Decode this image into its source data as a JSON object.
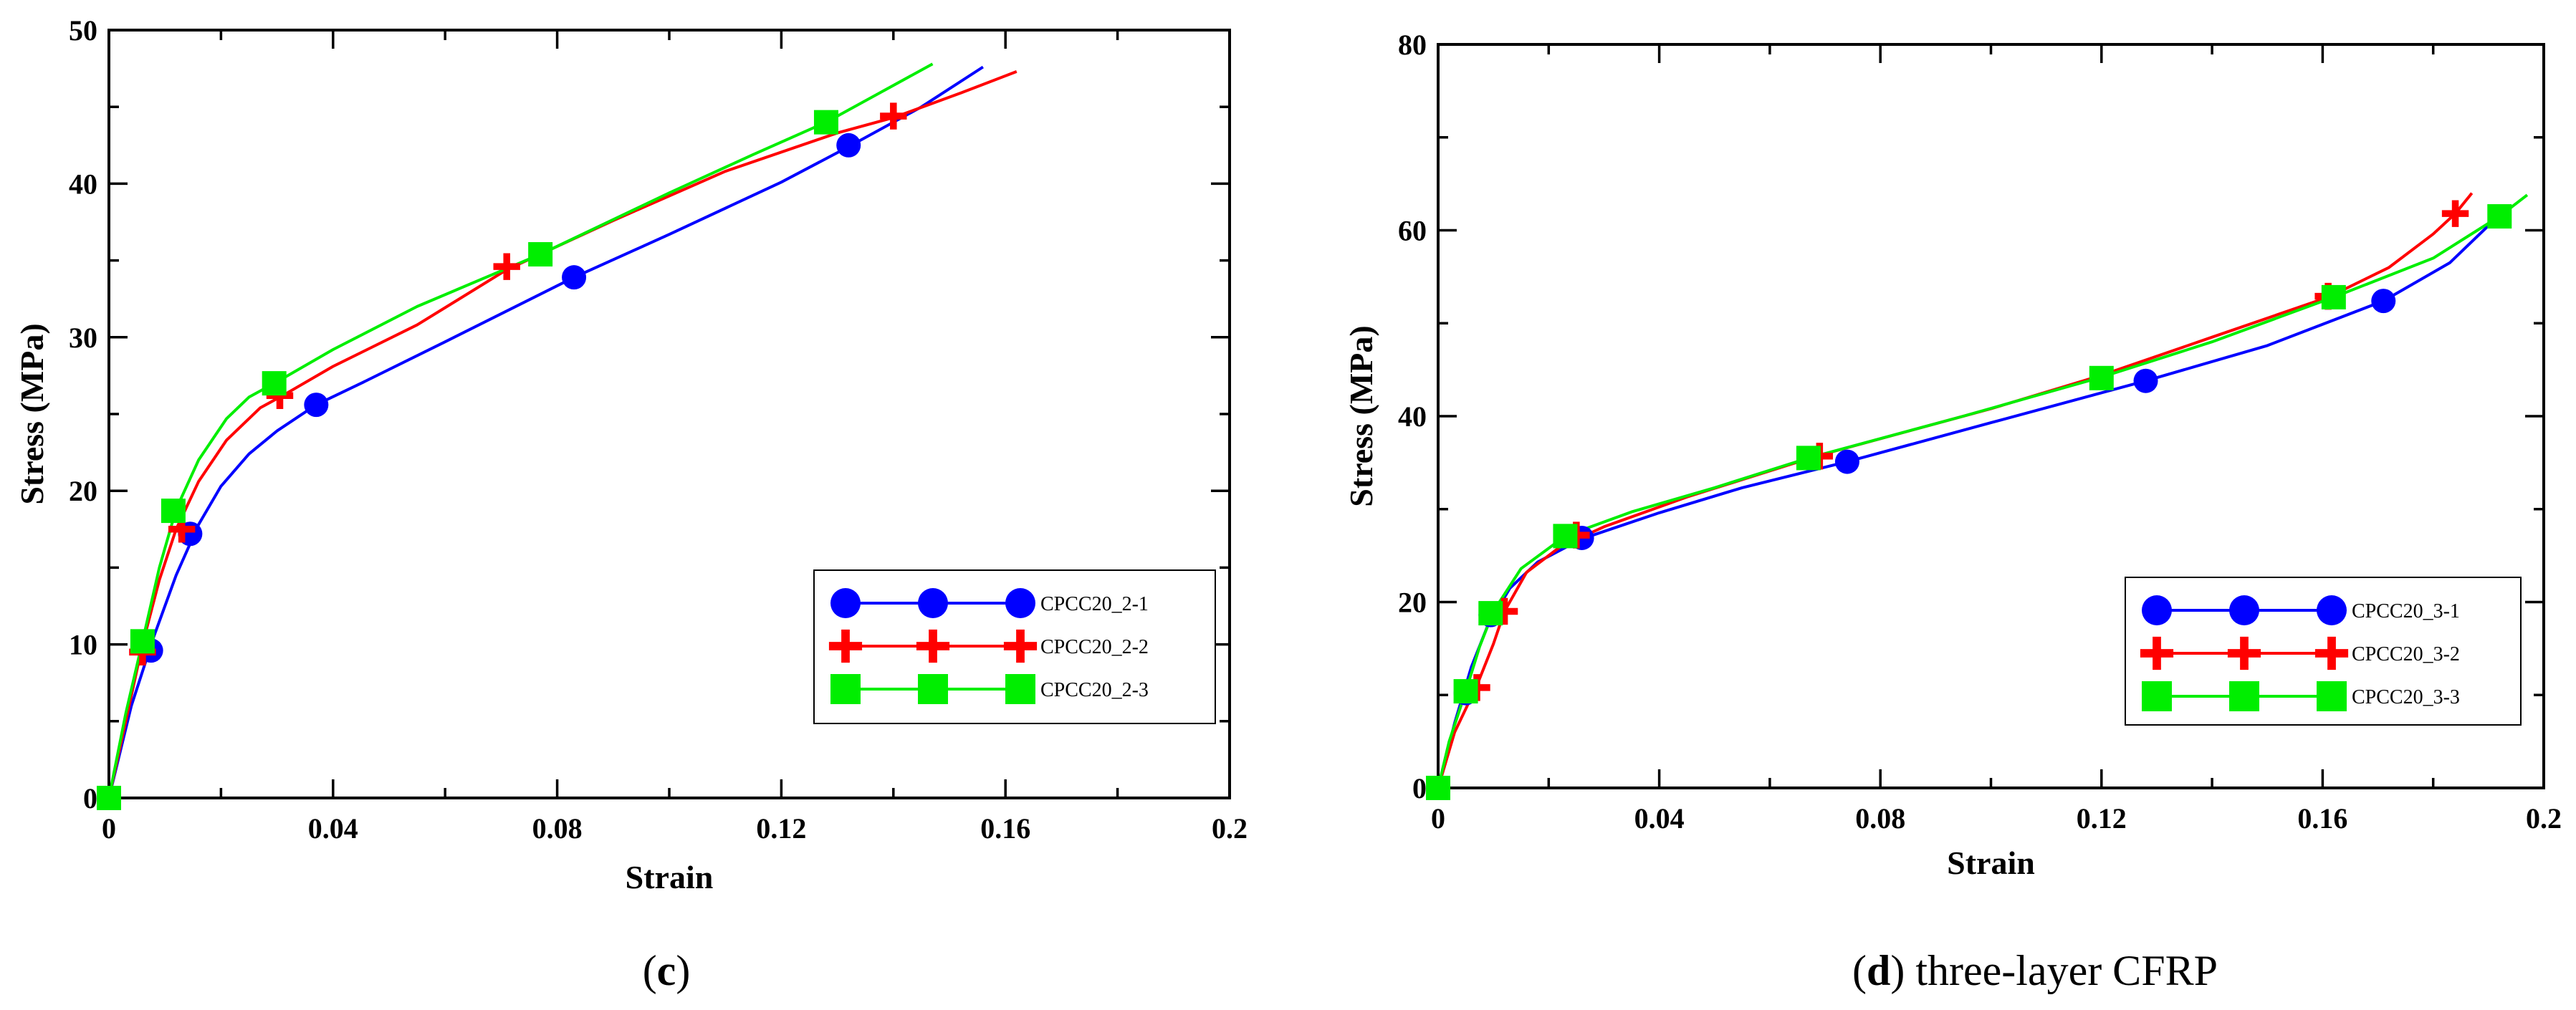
{
  "chart_data": [
    {
      "type": "line",
      "panel": "c",
      "title": "",
      "xlabel": "Strain",
      "ylabel": "Stress (MPa)",
      "xlim": [
        0,
        0.2
      ],
      "ylim": [
        0,
        50
      ],
      "xticks": [
        0,
        0.04,
        0.08,
        0.12,
        0.16,
        0.2
      ],
      "xtick_labels": [
        "0",
        "0.04",
        "0.08",
        "0.12",
        "0.16",
        "0.2"
      ],
      "yticks": [
        0,
        10,
        20,
        30,
        40,
        50
      ],
      "ytick_labels": [
        "0",
        "10",
        "20",
        "30",
        "40",
        "50"
      ],
      "legend_position": "bottom-right",
      "caption_letter": "c",
      "caption_open": "(",
      "caption_close": ")",
      "caption_rest": "",
      "series": [
        {
          "name": "CPCC20_2-1",
          "color": "#0000ff",
          "marker": "circle",
          "curve": [
            [
              0,
              0
            ],
            [
              0.004,
              6
            ],
            [
              0.008,
              10.5
            ],
            [
              0.012,
              14.5
            ],
            [
              0.016,
              17.8
            ],
            [
              0.02,
              20.3
            ],
            [
              0.025,
              22.4
            ],
            [
              0.03,
              23.9
            ],
            [
              0.037,
              25.6
            ],
            [
              0.045,
              27
            ],
            [
              0.06,
              29.7
            ],
            [
              0.083,
              33.9
            ],
            [
              0.1,
              36.7
            ],
            [
              0.12,
              40.1
            ],
            [
              0.132,
              42.4
            ],
            [
              0.145,
              45
            ],
            [
              0.156,
              47.6
            ]
          ],
          "markers": [
            [
              0,
              0
            ],
            [
              0.0075,
              9.6
            ],
            [
              0.0145,
              17.2
            ],
            [
              0.037,
              25.6
            ],
            [
              0.083,
              33.9
            ],
            [
              0.132,
              42.5
            ]
          ]
        },
        {
          "name": "CPCC20_2-2",
          "color": "#ff0000",
          "marker": "plus",
          "curve": [
            [
              0,
              0
            ],
            [
              0.003,
              5
            ],
            [
              0.006,
              10
            ],
            [
              0.009,
              14.2
            ],
            [
              0.012,
              17.5
            ],
            [
              0.016,
              20.6
            ],
            [
              0.021,
              23.3
            ],
            [
              0.027,
              25.4
            ],
            [
              0.031,
              26.2
            ],
            [
              0.04,
              28.1
            ],
            [
              0.055,
              30.8
            ],
            [
              0.071,
              34.4
            ],
            [
              0.09,
              37.6
            ],
            [
              0.11,
              40.8
            ],
            [
              0.13,
              43.3
            ],
            [
              0.14,
              44.3
            ],
            [
              0.152,
              45.9
            ],
            [
              0.162,
              47.3
            ]
          ],
          "markers": [
            [
              0.006,
              9.5
            ],
            [
              0.013,
              17.5
            ],
            [
              0.0305,
              26.2
            ],
            [
              0.071,
              34.6
            ],
            [
              0.14,
              44.4
            ]
          ]
        },
        {
          "name": "CPCC20_2-3",
          "color": "#00ee00",
          "marker": "square",
          "curve": [
            [
              0,
              0
            ],
            [
              0.003,
              5.5
            ],
            [
              0.006,
              10.2
            ],
            [
              0.009,
              15
            ],
            [
              0.012,
              18.8
            ],
            [
              0.016,
              22
            ],
            [
              0.021,
              24.7
            ],
            [
              0.025,
              26.1
            ],
            [
              0.03,
              27.1
            ],
            [
              0.04,
              29.2
            ],
            [
              0.055,
              32
            ],
            [
              0.077,
              35.4
            ],
            [
              0.1,
              39.4
            ],
            [
              0.115,
              41.9
            ],
            [
              0.128,
              44
            ],
            [
              0.138,
              46
            ],
            [
              0.147,
              47.8
            ]
          ],
          "markers": [
            [
              0,
              0
            ],
            [
              0.006,
              10.2
            ],
            [
              0.0115,
              18.7
            ],
            [
              0.0295,
              27
            ],
            [
              0.077,
              35.4
            ],
            [
              0.128,
              44
            ]
          ]
        }
      ]
    },
    {
      "type": "line",
      "panel": "d",
      "title": "",
      "xlabel": "Strain",
      "ylabel": "Stress (MPa)",
      "xlim": [
        0,
        0.2
      ],
      "ylim": [
        0,
        80
      ],
      "xticks": [
        0,
        0.04,
        0.08,
        0.12,
        0.16,
        0.2
      ],
      "xtick_labels": [
        "0",
        "0.04",
        "0.08",
        "0.12",
        "0.16",
        "0.2"
      ],
      "yticks": [
        0,
        20,
        40,
        60,
        80
      ],
      "ytick_labels": [
        "0",
        "20",
        "40",
        "60",
        "80"
      ],
      "legend_position": "bottom-right",
      "caption_letter": "d",
      "caption_open": "(",
      "caption_close": ")",
      "caption_rest": " three-layer CFRP",
      "series": [
        {
          "name": "CPCC20_3-1",
          "color": "#0000ff",
          "marker": "circle",
          "curve": [
            [
              0,
              0
            ],
            [
              0.003,
              7
            ],
            [
              0.006,
              13
            ],
            [
              0.009,
              17.5
            ],
            [
              0.013,
              21.5
            ],
            [
              0.018,
              24.3
            ],
            [
              0.026,
              26.8
            ],
            [
              0.04,
              29.6
            ],
            [
              0.055,
              32.3
            ],
            [
              0.074,
              35.1
            ],
            [
              0.1,
              39.3
            ],
            [
              0.128,
              43.8
            ],
            [
              0.15,
              47.6
            ],
            [
              0.171,
              52.4
            ],
            [
              0.183,
              56.5
            ],
            [
              0.19,
              60.5
            ]
          ],
          "markers": [
            [
              0,
              0
            ],
            [
              0.005,
              10.2
            ],
            [
              0.0095,
              18.6
            ],
            [
              0.026,
              26.9
            ],
            [
              0.074,
              35.1
            ],
            [
              0.128,
              43.8
            ],
            [
              0.171,
              52.4
            ]
          ]
        },
        {
          "name": "CPCC20_3-2",
          "color": "#ff0000",
          "marker": "plus",
          "curve": [
            [
              0,
              0
            ],
            [
              0.003,
              6
            ],
            [
              0.007,
              11
            ],
            [
              0.01,
              15.5
            ],
            [
              0.012,
              19
            ],
            [
              0.016,
              23.2
            ],
            [
              0.022,
              25.9
            ],
            [
              0.03,
              28.1
            ],
            [
              0.045,
              31.3
            ],
            [
              0.069,
              35.8
            ],
            [
              0.1,
              40.8
            ],
            [
              0.12,
              44.4
            ],
            [
              0.14,
              48.5
            ],
            [
              0.161,
              52.8
            ],
            [
              0.172,
              56
            ],
            [
              0.18,
              59.6
            ],
            [
              0.184,
              61.8
            ],
            [
              0.187,
              64
            ]
          ],
          "markers": [
            [
              0.007,
              10.8
            ],
            [
              0.012,
              19
            ],
            [
              0.025,
              27.2
            ],
            [
              0.069,
              35.7
            ],
            [
              0.161,
              52.9
            ],
            [
              0.184,
              61.8
            ]
          ]
        },
        {
          "name": "CPCC20_3-3",
          "color": "#00ee00",
          "marker": "square",
          "curve": [
            [
              0,
              0
            ],
            [
              0.002,
              5
            ],
            [
              0.005,
              10.4
            ],
            [
              0.0075,
              15.2
            ],
            [
              0.01,
              19
            ],
            [
              0.015,
              23.6
            ],
            [
              0.023,
              27.1
            ],
            [
              0.035,
              29.7
            ],
            [
              0.05,
              32.3
            ],
            [
              0.067,
              35.5
            ],
            [
              0.095,
              40
            ],
            [
              0.12,
              44.2
            ],
            [
              0.14,
              48
            ],
            [
              0.162,
              52.8
            ],
            [
              0.18,
              57
            ],
            [
              0.192,
              61.5
            ],
            [
              0.197,
              63.8
            ]
          ],
          "markers": [
            [
              0,
              0
            ],
            [
              0.005,
              10.4
            ],
            [
              0.0095,
              18.8
            ],
            [
              0.023,
              27.1
            ],
            [
              0.067,
              35.5
            ],
            [
              0.12,
              44.1
            ],
            [
              0.162,
              52.8
            ],
            [
              0.192,
              61.5
            ]
          ]
        }
      ]
    }
  ]
}
